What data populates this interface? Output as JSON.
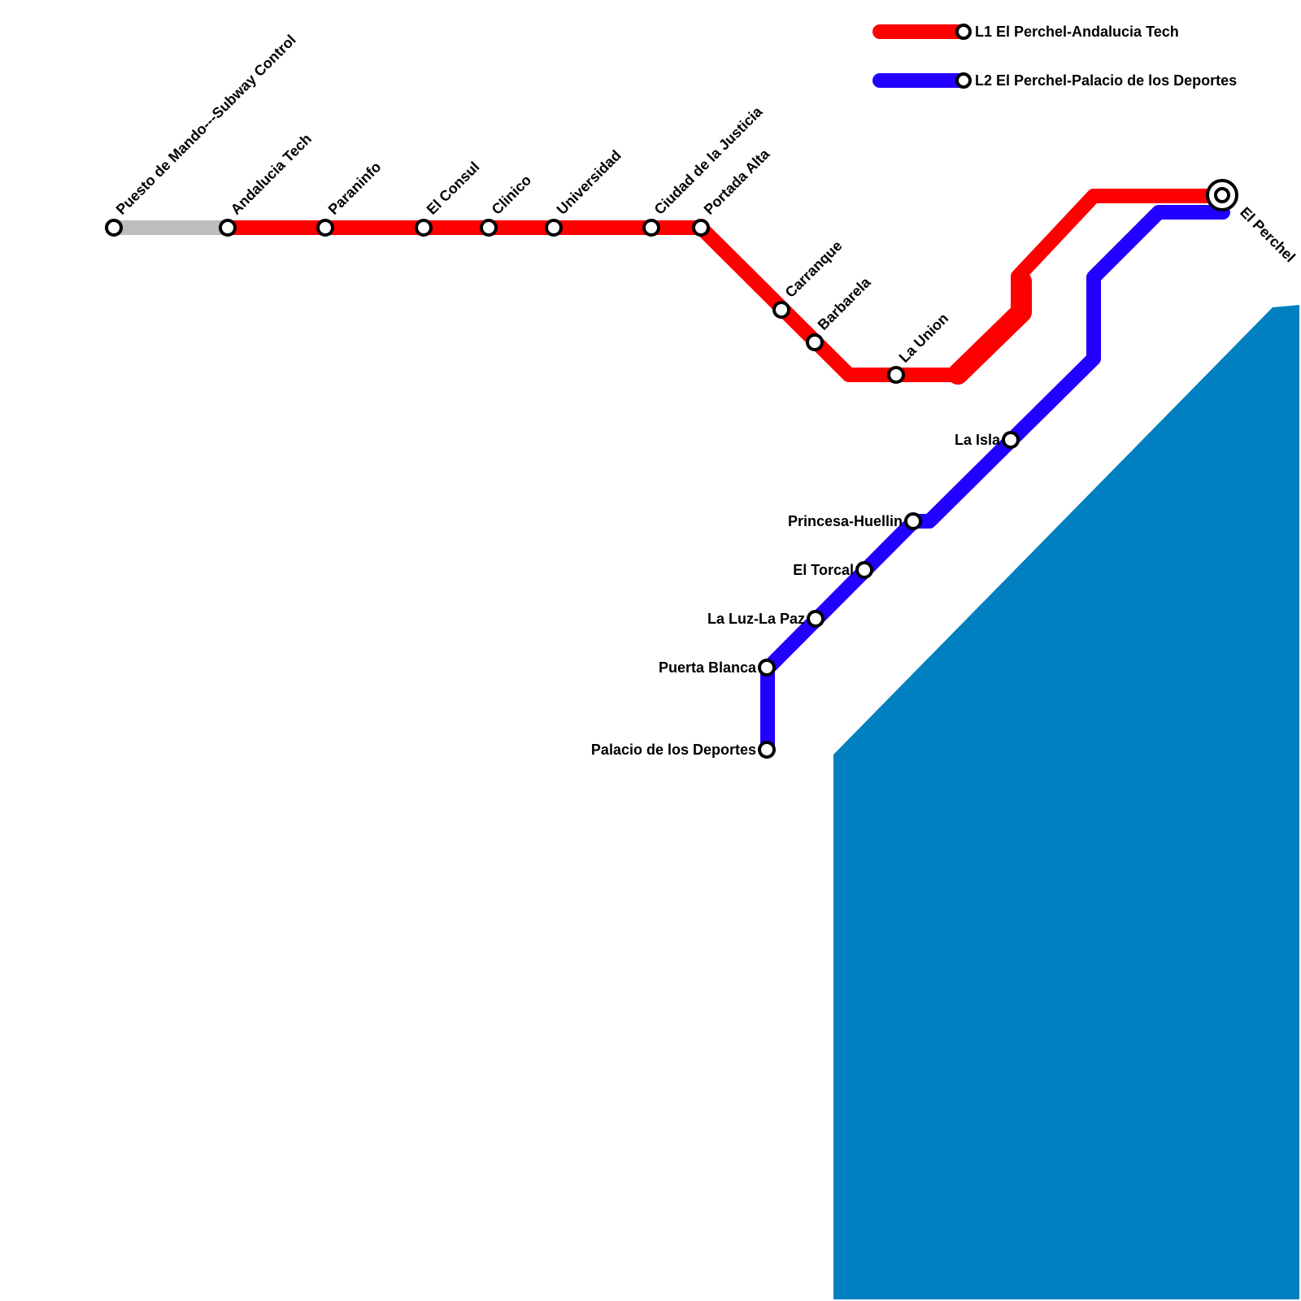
{
  "colors": {
    "water": "#0080c0",
    "l1": "#ff0000",
    "l2": "#2200ff",
    "service": "#bdbdbd",
    "station_fill": "#ffffff",
    "station_stroke": "#000000"
  },
  "legend": {
    "l1_label": "L1 El Perchel-Andalucia Tech",
    "l2_label": "L2 El Perchel-Palacio de los Deportes"
  },
  "stations": {
    "puesto_de_mando": "Puesto de Mando---Subway Control",
    "andalucia_tech": "Andalucia Tech",
    "paraninfo": "Paraninfo",
    "el_consul": "El Consul",
    "clinico": "Clinico",
    "universidad": "Universidad",
    "ciudad_de_la_justicia": "Ciudad de la Justicia",
    "portada_alta": "Portada Alta",
    "carranque": "Carranque",
    "barbarela": "Barbarela",
    "la_union": "La Union",
    "el_perchel": "El Perchel",
    "la_isla": "La Isla",
    "princesa_huellin": "Princesa-Huellin",
    "el_torcal": "El Torcal",
    "la_luz_la_paz": "La Luz-La Paz",
    "puerta_blanca": "Puerta Blanca",
    "palacio_de_los_deportes": "Palacio de los Deportes"
  }
}
